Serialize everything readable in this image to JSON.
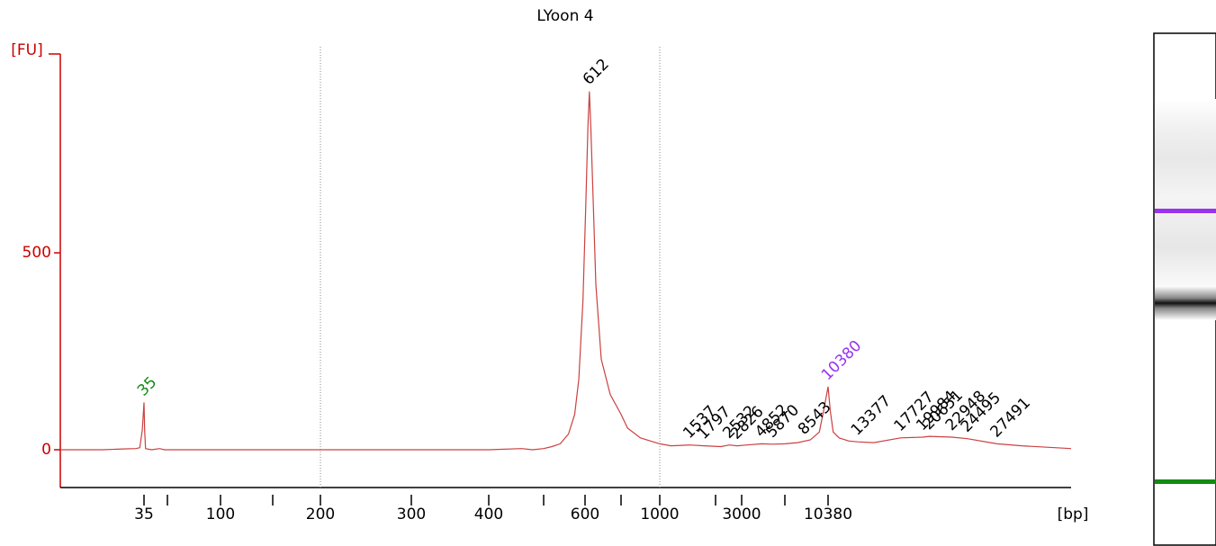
{
  "chart_data": {
    "type": "electropherogram",
    "title": "LYoon 4",
    "ylabel": "[FU]",
    "xlabel": "[bp]",
    "xlim": [
      15,
      35000
    ],
    "ylim": [
      -96,
      1005
    ],
    "yticks": [
      0,
      500
    ],
    "xticks": [
      35,
      {
        "value": 50,
        "label": null
      },
      100,
      {
        "value": 150,
        "label": null
      },
      200,
      300,
      400,
      {
        "value": 500,
        "label": null
      },
      600,
      {
        "value": 700,
        "label": null
      },
      1000,
      {
        "value": 2000,
        "label": null
      },
      3000,
      {
        "value": 7000,
        "label": null
      },
      10380
    ],
    "vlines": [
      200,
      1000
    ],
    "series": [
      {
        "name": "LYoon 4",
        "color": "#cc4040",
        "x": [
          15,
          25,
          30,
          33,
          34,
          34.6,
          35,
          35.4,
          36,
          37,
          40,
          45,
          48,
          60,
          100,
          200,
          300,
          400,
          460,
          480,
          500,
          520,
          540,
          560,
          575,
          585,
          595,
          602,
          608,
          612,
          616,
          622,
          630,
          645,
          670,
          700,
          750,
          850,
          1000,
          1200,
          1537,
          1797,
          2200,
          2532,
          2826,
          3500,
          4852,
          5870,
          7000,
          8000,
          9000,
          9700,
          10100,
          10380,
          10600,
          10900,
          11500,
          12500,
          13377,
          15000,
          17727,
          19984,
          20651,
          22948,
          24495,
          27491,
          30000,
          35000
        ],
        "values": [
          0,
          0,
          2,
          3,
          5,
          50,
          120,
          50,
          3,
          2,
          0,
          3,
          0,
          0,
          0,
          0,
          0,
          0,
          3,
          0,
          3,
          8,
          15,
          40,
          90,
          180,
          380,
          620,
          820,
          910,
          820,
          650,
          420,
          230,
          140,
          90,
          55,
          30,
          15,
          10,
          12,
          10,
          8,
          12,
          10,
          12,
          15,
          14,
          15,
          18,
          25,
          45,
          110,
          160,
          100,
          45,
          30,
          22,
          20,
          18,
          30,
          32,
          34,
          32,
          28,
          15,
          10,
          3
        ]
      }
    ],
    "peaks": [
      35,
      612,
      1537,
      1797,
      2532,
      2826,
      4852,
      5870,
      8543,
      10380,
      13377,
      17727,
      19984,
      20651,
      22948,
      24495,
      27491
    ],
    "peak_colors": [
      "#138a13",
      "#000000",
      "#000000",
      "#000000",
      "#000000",
      "#000000",
      "#000000",
      "#000000",
      "#000000",
      "#9933ee",
      "#000000",
      "#000000",
      "#000000",
      "#000000",
      "#000000",
      "#000000",
      "#000000"
    ]
  }
}
